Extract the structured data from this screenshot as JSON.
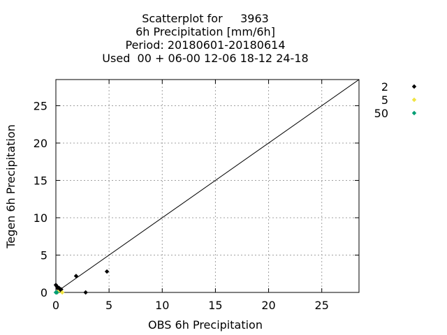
{
  "chart_data": {
    "type": "scatter",
    "title_lines": [
      "Scatterplot for     3963",
      "6h Precipitation [mm/6h]",
      "Period: 20180601-20180614",
      "Used  00 + 06-00 12-06 18-12 24-18"
    ],
    "xlabel": "OBS 6h Precipitation",
    "ylabel": "Tegen 6h Precipitation",
    "xlim": [
      0,
      28.5
    ],
    "ylim": [
      0,
      28.5
    ],
    "xticks": [
      0,
      5,
      10,
      15,
      20,
      25
    ],
    "yticks": [
      0,
      5,
      10,
      15,
      20,
      25
    ],
    "grid": true,
    "diagonal_line": true,
    "legend_position": "right",
    "series": [
      {
        "name": "2",
        "color": "#000000",
        "marker": "diamond",
        "points": [
          [
            0.0,
            1.0
          ],
          [
            0.1,
            0.8
          ],
          [
            0.2,
            0.5
          ],
          [
            0.3,
            0.6
          ],
          [
            0.4,
            0.3
          ],
          [
            0.5,
            0.4
          ],
          [
            1.9,
            2.2
          ],
          [
            2.8,
            0.0
          ],
          [
            4.8,
            2.8
          ]
        ]
      },
      {
        "name": "5",
        "color": "#f0e442",
        "marker": "diamond",
        "points": [
          [
            0.2,
            0.1
          ],
          [
            0.6,
            0.0
          ]
        ]
      },
      {
        "name": "50",
        "color": "#009e73",
        "marker": "diamond",
        "points": [
          [
            0.0,
            0.0
          ],
          [
            0.1,
            0.0
          ]
        ]
      }
    ]
  }
}
